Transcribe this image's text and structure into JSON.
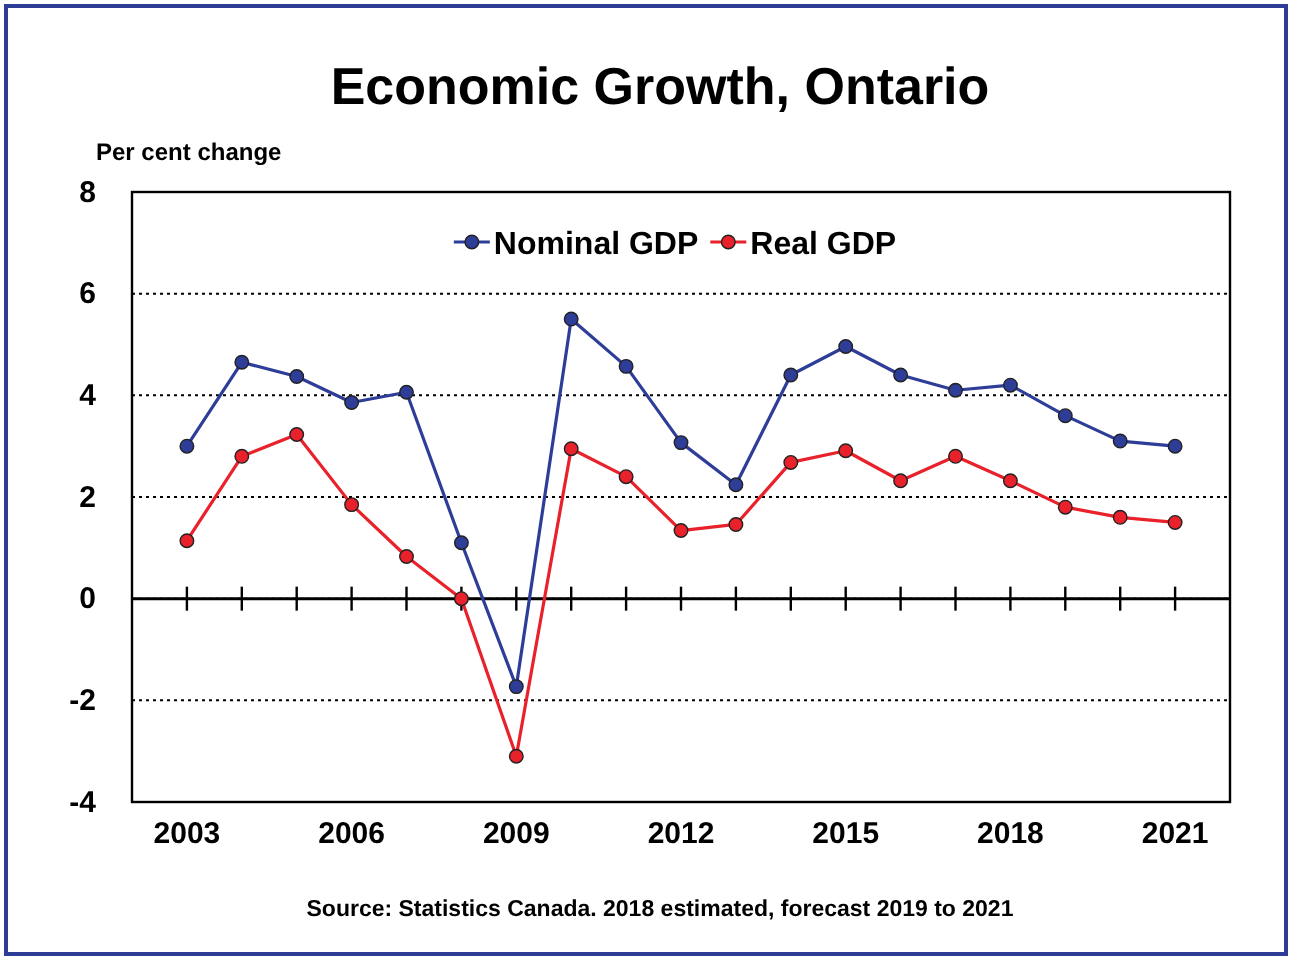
{
  "chart_data": {
    "type": "line",
    "title": "Economic Growth, Ontario",
    "ylabel": "Per cent change",
    "x": [
      2003,
      2004,
      2005,
      2006,
      2007,
      2008,
      2009,
      2010,
      2011,
      2012,
      2013,
      2014,
      2015,
      2016,
      2017,
      2018,
      2019,
      2020,
      2021
    ],
    "series": [
      {
        "name": "Nominal GDP",
        "color": "#2e3d98",
        "values": [
          3.0,
          4.65,
          4.37,
          3.86,
          4.06,
          1.1,
          -1.73,
          5.5,
          4.57,
          3.07,
          2.24,
          4.4,
          4.96,
          4.4,
          4.1,
          4.2,
          3.6,
          3.1,
          3.0
        ]
      },
      {
        "name": "Real GDP",
        "color": "#e8212a",
        "values": [
          1.14,
          2.8,
          3.23,
          1.85,
          0.83,
          0.0,
          -3.1,
          2.95,
          2.4,
          1.34,
          1.46,
          2.68,
          2.91,
          2.32,
          2.8,
          2.32,
          1.8,
          1.6,
          1.5
        ]
      }
    ],
    "xlim": [
      2002,
      2022
    ],
    "xticks": [
      2003,
      {
        "value": 2004,
        "label": null
      },
      {
        "value": 2005,
        "label": null
      },
      2006,
      {
        "value": 2007,
        "label": null
      },
      {
        "value": 2008,
        "label": null
      },
      2009,
      {
        "value": 2010,
        "label": null
      },
      {
        "value": 2011,
        "label": null
      },
      2012,
      {
        "value": 2013,
        "label": null
      },
      {
        "value": 2014,
        "label": null
      },
      2015,
      {
        "value": 2016,
        "label": null
      },
      {
        "value": 2017,
        "label": null
      },
      2018,
      {
        "value": 2019,
        "label": null
      },
      {
        "value": 2020,
        "label": null
      },
      2021
    ],
    "ylim": [
      -4,
      8
    ],
    "yticks": [
      -4,
      -2,
      0,
      2,
      4,
      6,
      8
    ],
    "ref_lines": [
      {
        "axis": "y",
        "value": 0,
        "line_style": "solid",
        "color": "#000000"
      }
    ],
    "grid": "y",
    "legend": "top",
    "marker": "circle",
    "line_style": "solid",
    "annotations": [
      "Source: Statistics Canada. 2018 estimated, forecast 2019 to 2021"
    ]
  }
}
